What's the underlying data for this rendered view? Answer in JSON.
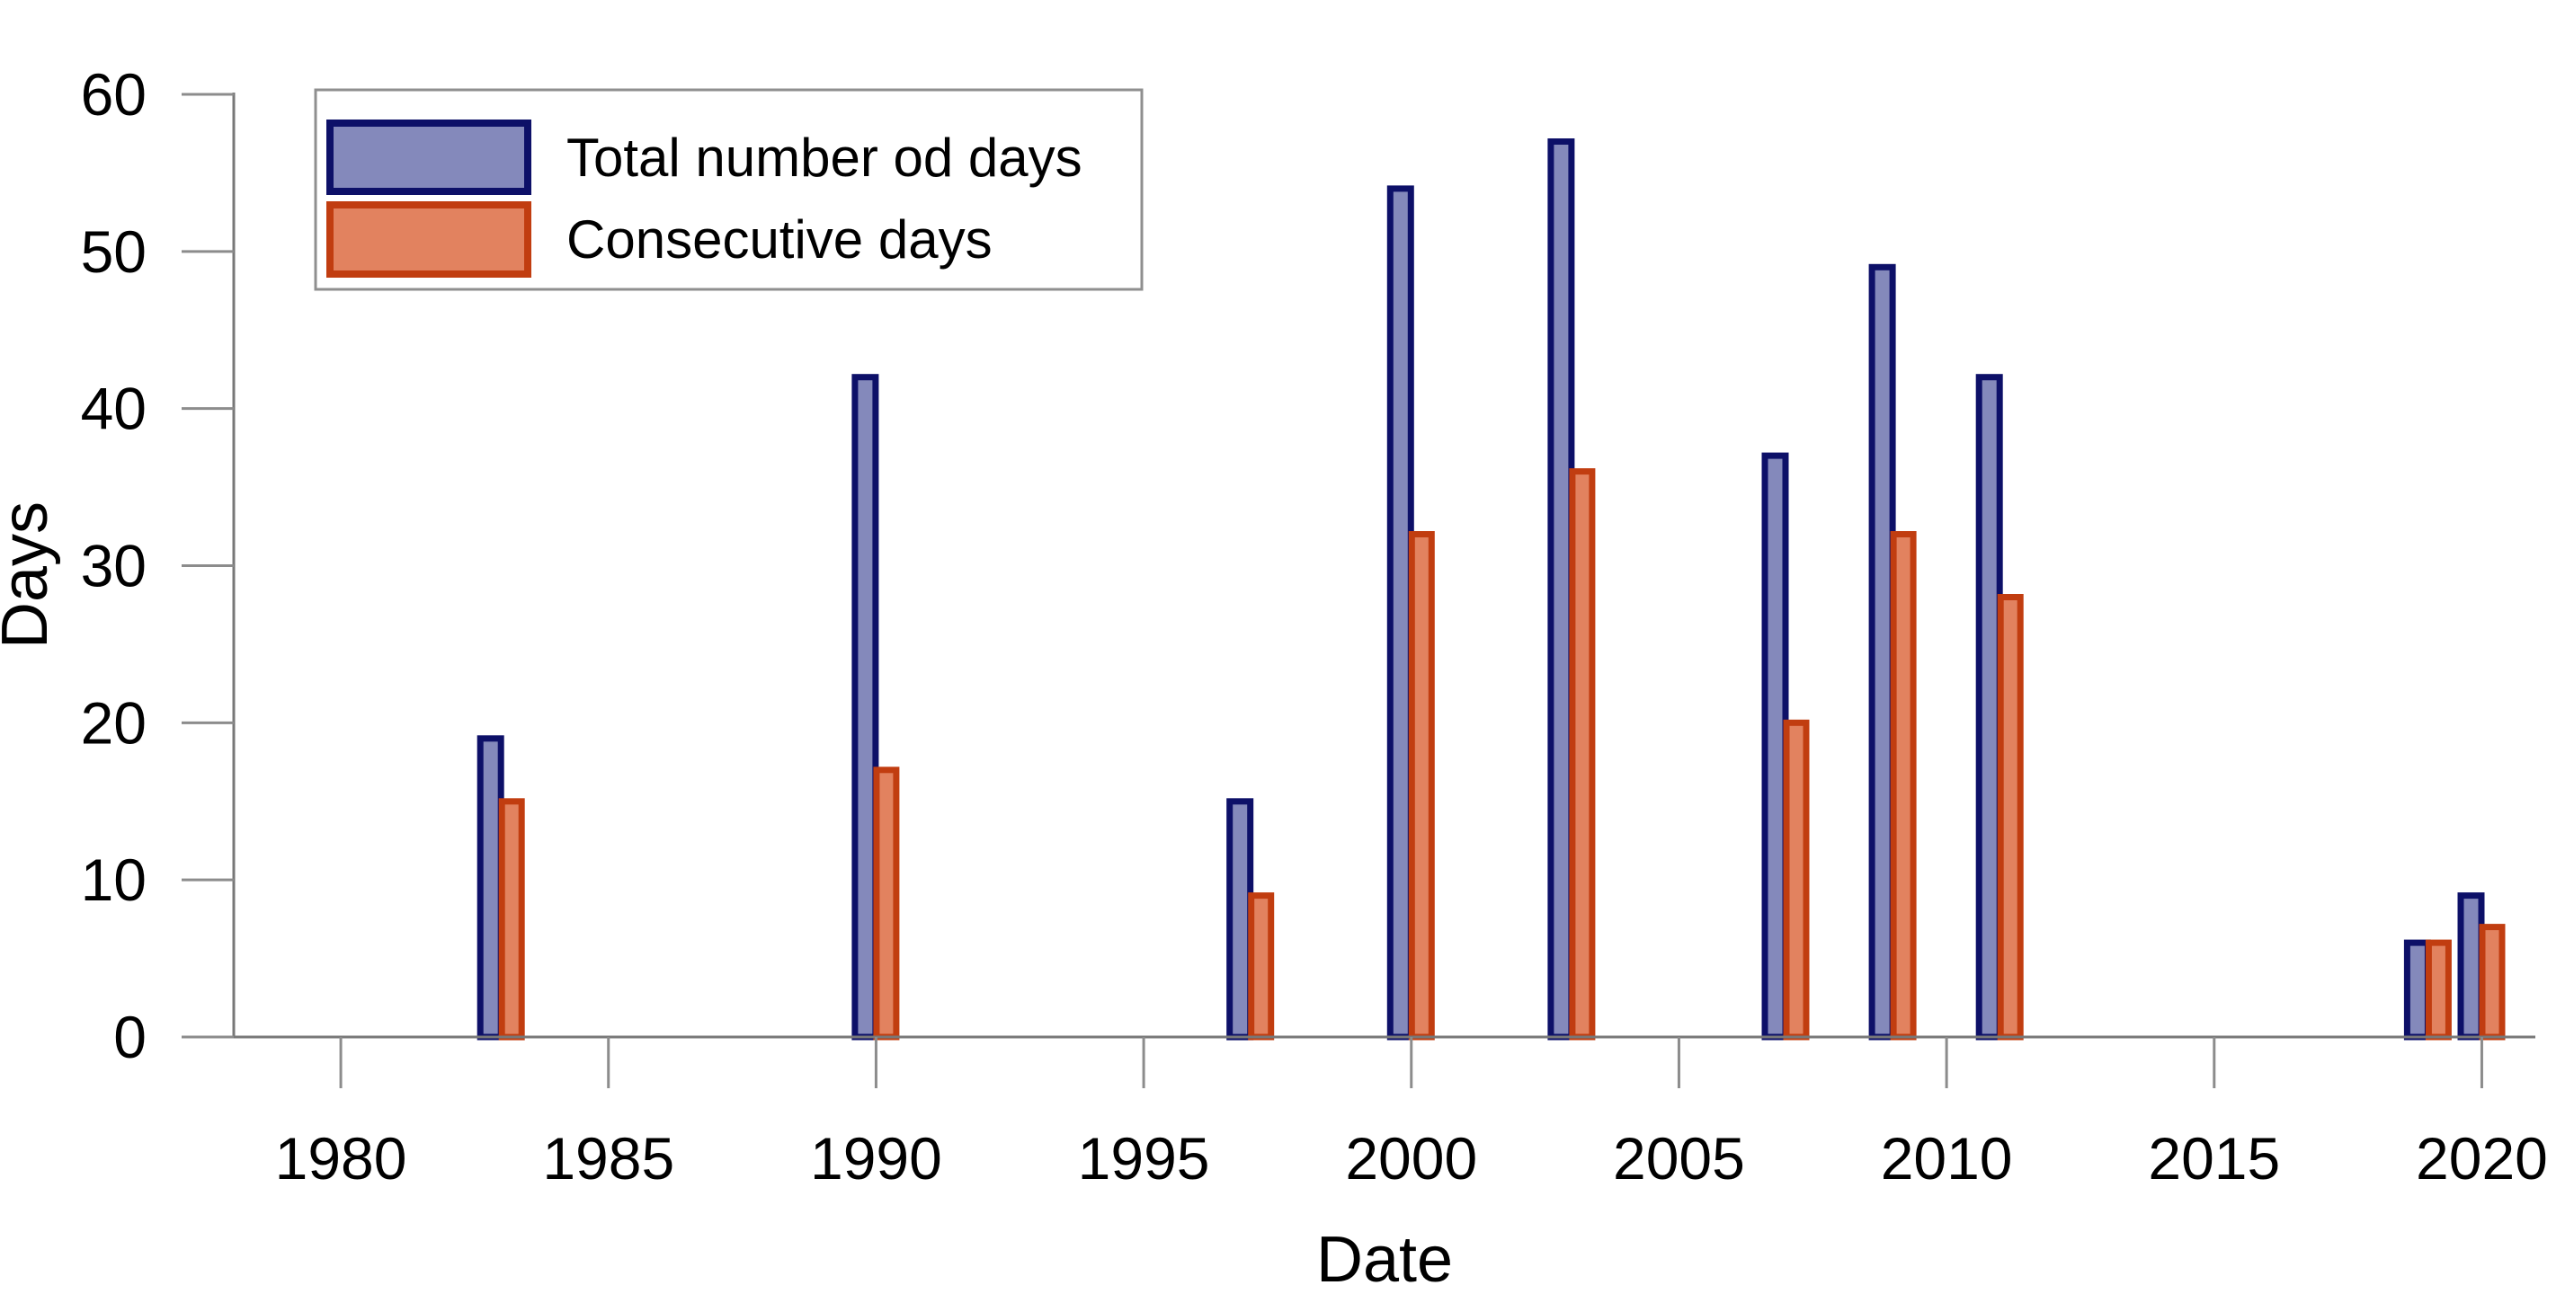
{
  "figure": {
    "background": "#ffffff",
    "axis_color": "#787878",
    "tick_color": "#8c8c8c",
    "text_color": "#000000"
  },
  "chart_data": {
    "type": "bar",
    "title": "",
    "xlabel": "Date",
    "ylabel": "Days",
    "xlim": [
      1978,
      2021
    ],
    "ylim": [
      0,
      60
    ],
    "xticks": [
      1980,
      1985,
      1990,
      1995,
      2000,
      2005,
      2010,
      2015,
      2020
    ],
    "yticks": [
      0,
      10,
      20,
      30,
      40,
      50,
      60
    ],
    "grid": false,
    "legend_position": "upper-left",
    "categories": [
      1983,
      1990,
      1997,
      2000,
      2003,
      2007,
      2009,
      2011,
      2019,
      2020
    ],
    "series": [
      {
        "name": "Total number od days",
        "values": [
          19,
          42,
          15,
          54,
          57,
          37,
          49,
          42,
          6,
          9
        ],
        "fill": "#8489BB",
        "stroke": "#0D1068"
      },
      {
        "name": "Consecutive days",
        "values": [
          15,
          17,
          9,
          32,
          36,
          20,
          32,
          28,
          6,
          7
        ],
        "fill": "#E2825F",
        "stroke": "#C13D10"
      }
    ]
  }
}
